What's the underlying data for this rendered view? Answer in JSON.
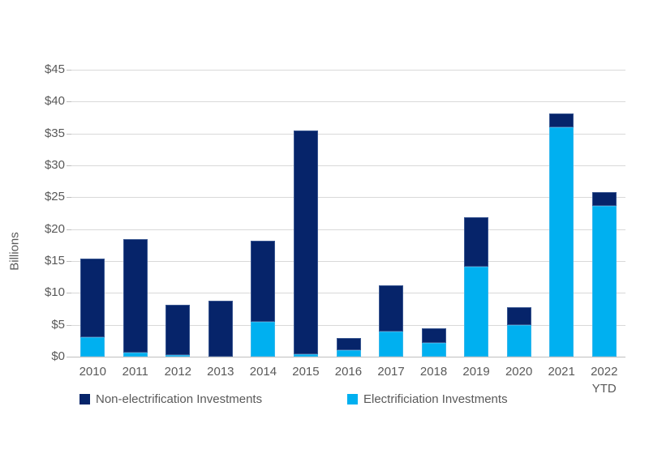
{
  "chart_data": {
    "type": "bar",
    "stacked": true,
    "title": "",
    "ylabel": "Billions",
    "xlabel": "",
    "ylim": [
      0,
      45
    ],
    "ytick_step": 5,
    "yticks": [
      "$0",
      "$5",
      "$10",
      "$15",
      "$20",
      "$25",
      "$30",
      "$35",
      "$40",
      "$45"
    ],
    "grid": true,
    "legend_position": "bottom",
    "categories": [
      "2010",
      "2011",
      "2012",
      "2013",
      "2014",
      "2015",
      "2016",
      "2017",
      "2018",
      "2019",
      "2020",
      "2021",
      "2022\nYTD"
    ],
    "series": [
      {
        "name": "Electrificiation Investments",
        "color": "#00b0f0",
        "values": [
          3.0,
          0.7,
          0.2,
          0,
          5.5,
          0.4,
          1.0,
          3.9,
          2.2,
          14.1,
          5.0,
          36.0,
          23.7
        ]
      },
      {
        "name": "Non-electrification Investments",
        "color": "#06246a",
        "values": [
          12.4,
          17.8,
          8.0,
          8.8,
          12.7,
          35.1,
          1.9,
          7.3,
          2.2,
          7.8,
          2.8,
          2.2,
          2.1
        ]
      }
    ],
    "totals": [
      15.4,
      18.5,
      8.2,
      8.8,
      18.2,
      35.5,
      2.9,
      11.2,
      4.4,
      21.9,
      7.8,
      38.2,
      25.8
    ],
    "legend": {
      "items": [
        {
          "label": "Non-electrification Investments",
          "color": "#06246a"
        },
        {
          "label": "Electrificiation Investments",
          "color": "#00b0f0"
        }
      ]
    },
    "colors": {
      "non_electrification": "#06246a",
      "electrification": "#00b0f0",
      "gridline": "#d9d9d9",
      "axis_line": "#bfbfbf",
      "axis_text": "#595959"
    }
  }
}
